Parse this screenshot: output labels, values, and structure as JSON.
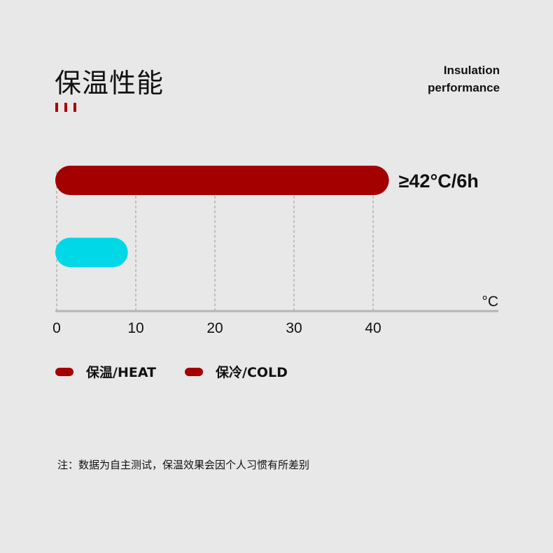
{
  "header": {
    "title": "保温性能",
    "subtitle_line1": "Insulation",
    "subtitle_line2": "performance"
  },
  "chart_data": {
    "type": "bar",
    "orientation": "horizontal",
    "categories": [
      "保温/HEAT",
      "保冷/COLD"
    ],
    "values": [
      42,
      9
    ],
    "colors": [
      "#a50000",
      "#00d8e8"
    ],
    "data_labels": [
      "≥42°C/6h",
      ""
    ],
    "x_unit": "°C",
    "xlim": [
      0,
      56
    ],
    "x_ticks": [
      0,
      10,
      20,
      30,
      40
    ],
    "grid": "vertical dashed",
    "legend": {
      "position": "bottom-left",
      "entries": [
        {
          "label": "保温/HEAT",
          "color": "#a50000"
        },
        {
          "label": "保冷/COLD",
          "color": "#a50000"
        }
      ]
    }
  },
  "footer": {
    "note": "注：数据为自主测试，保温效果会因个人习惯有所差别"
  }
}
